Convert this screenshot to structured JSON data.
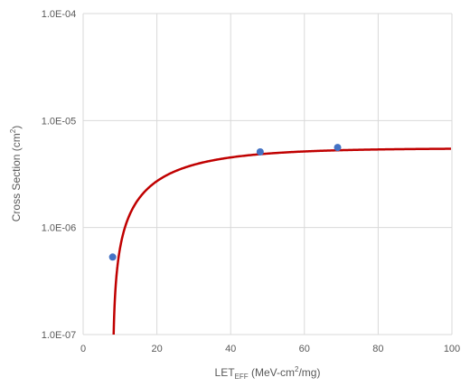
{
  "chart_data": {
    "type": "scatter",
    "xlim": [
      0,
      100
    ],
    "ylim": [
      1e-07,
      0.0001
    ],
    "yscale": "log",
    "grid": true,
    "legend": "none",
    "x_ticks": [
      "0",
      "20",
      "40",
      "60",
      "80",
      "100"
    ],
    "y_ticks": [
      "1.0E-07",
      "1.0E-06",
      "1.0E-05",
      "1.0E-04"
    ],
    "xlabel": {
      "main": "LET",
      "sub": "EFF",
      "rest_a": " (MeV-cm",
      "rest_sup": "2",
      "rest_b": "/mg)"
    },
    "ylabel": {
      "main": "Cross Section (cm",
      "sup": "2",
      "close": ")"
    },
    "series": [
      {
        "type": "scatter",
        "color": "#4472c4",
        "points": [
          {
            "x": 8,
            "y": 5.3e-07
          },
          {
            "x": 48,
            "y": 5.1e-06
          },
          {
            "x": 69,
            "y": 5.6e-06
          }
        ]
      },
      {
        "type": "line",
        "color": "#c00000",
        "fit": "weibull",
        "params": {
          "saturation": 5.5e-06,
          "threshold": 8.0,
          "width": 18,
          "shape": 0.95
        }
      }
    ]
  }
}
